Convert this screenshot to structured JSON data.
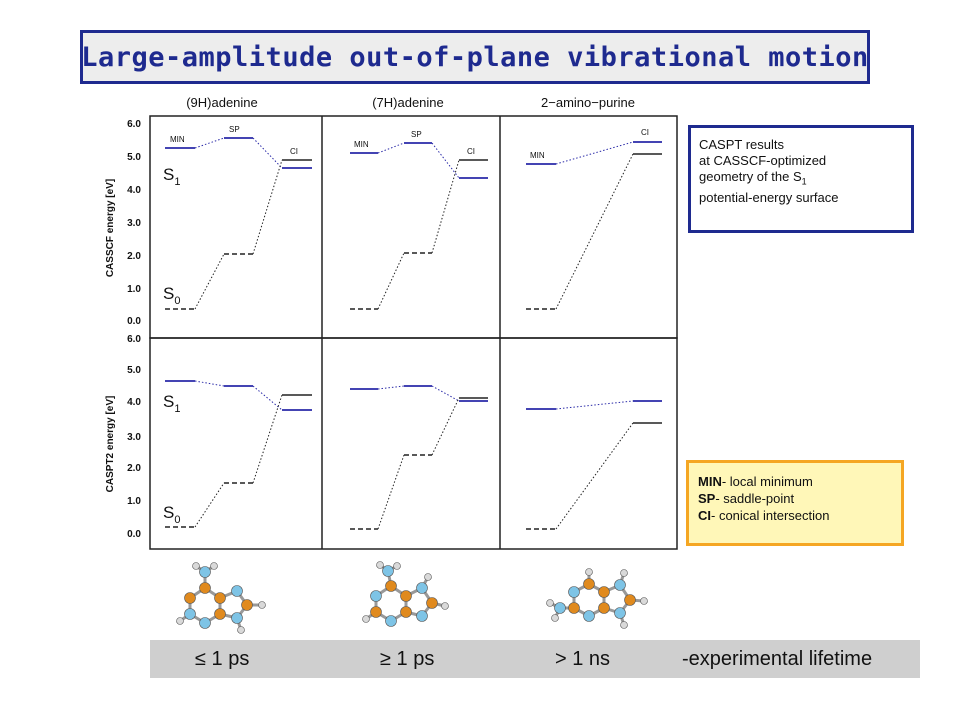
{
  "title": "Large-amplitude out-of-plane vibrational motion",
  "molecules": [
    "(9H)adenine",
    "(7H)adenine",
    "2−amino−purine"
  ],
  "top_panel": {
    "ylabel": "CASSCF energy [eV]",
    "ticks": [
      "6.0",
      "5.0",
      "4.0",
      "3.0",
      "2.0",
      "1.0",
      "0.0"
    ],
    "state_labels": {
      "s1": "S",
      "s1_sub": "1",
      "s0": "S",
      "s0_sub": "0"
    },
    "point_labels": {
      "min": "MIN",
      "sp": "SP",
      "ci": "CI"
    }
  },
  "bottom_panel": {
    "ylabel": "CASPT2 energy [eV]",
    "ticks": [
      "6.0",
      "5.0",
      "4.0",
      "3.0",
      "2.0",
      "1.0",
      "0.0"
    ],
    "state_labels": {
      "s1": "S",
      "s1_sub": "1",
      "s0": "S",
      "s0_sub": "0"
    }
  },
  "notes": {
    "caspt_line1": "CASPT results",
    "caspt_line2": "at CASSCF-optimized",
    "caspt_line3": "geometry of the S",
    "caspt_line3_sub": "1",
    "caspt_line4": "potential-energy surface",
    "legend_min_key": "MIN",
    "legend_min_text": "- local minimum",
    "legend_sp_key": "SP",
    "legend_sp_text": "- saddle-point",
    "legend_ci_key": "CI",
    "legend_ci_text": "- conical intersection"
  },
  "lifetimes": {
    "adenine9h": "≤ 1 ps",
    "adenine7h": "≥ 1 ps",
    "aminopurine": "> 1 ns",
    "caption": "-experimental lifetime"
  },
  "colors": {
    "title_border": "#1e2a8f",
    "s1_line": "#2a2aa8",
    "s0_line": "#222222",
    "note_orange_border": "#f5a623",
    "note_orange_fill": "#fff7b8",
    "atom_carbon": "#e08a1e",
    "atom_nitrogen": "#7ec4e6",
    "atom_hydrogen": "#d9d9d9"
  },
  "chart_data": [
    {
      "type": "line",
      "panel": "CASSCF",
      "ylabel": "CASSCF energy [eV]",
      "ylim": [
        0,
        6
      ],
      "x": [
        "(9H)adenine",
        "(7H)adenine",
        "2−amino−purine"
      ],
      "series": [
        {
          "name": "S1",
          "values": {
            "(9H)adenine": {
              "MIN": 5.25,
              "SP": 5.55,
              "CI": 4.65
            },
            "(7H)adenine": {
              "MIN": 5.1,
              "SP": 5.4,
              "CI": 4.35
            },
            "2−amino−purine": {
              "MIN": 4.75,
              "CI": 5.45
            }
          }
        },
        {
          "name": "S0",
          "values": {
            "(9H)adenine": {
              "MIN": 0.35,
              "SP": 2.05,
              "CI": 4.9
            },
            "(7H)adenine": {
              "MIN": 0.35,
              "SP": 2.05,
              "CI": 4.9
            },
            "2−amino−purine": {
              "MIN": 0.35,
              "CI": 5.1
            }
          }
        }
      ]
    },
    {
      "type": "line",
      "panel": "CASPT2",
      "ylabel": "CASPT2 energy [eV]",
      "ylim": [
        0,
        6
      ],
      "x": [
        "(9H)adenine",
        "(7H)adenine",
        "2−amino−purine"
      ],
      "series": [
        {
          "name": "S1",
          "values": {
            "(9H)adenine": {
              "MIN": 4.65,
              "SP": 4.5,
              "CI": 3.75
            },
            "(7H)adenine": {
              "MIN": 4.35,
              "SP": 4.5,
              "CI": 4.05
            },
            "2−amino−purine": {
              "MIN": 3.8,
              "CI": 4.05
            }
          }
        },
        {
          "name": "S0",
          "values": {
            "(9H)adenine": {
              "MIN": 0.2,
              "SP": 1.55,
              "CI": 4.25
            },
            "(7H)adenine": {
              "MIN": 0.15,
              "SP": 2.4,
              "CI": 4.1
            },
            "2−amino−purine": {
              "MIN": 0.15,
              "CI": 3.4
            }
          }
        }
      ]
    }
  ]
}
